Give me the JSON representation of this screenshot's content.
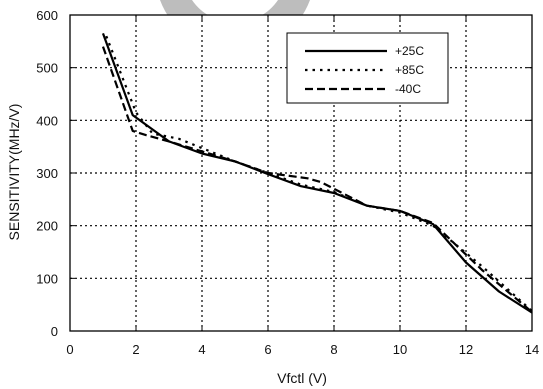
{
  "chart_data": {
    "type": "line",
    "xlabel": "Vfctl (V)",
    "ylabel": "SENSITIVITY(MHz/V)",
    "xlim": [
      0,
      14
    ],
    "ylim": [
      0,
      600
    ],
    "x_ticks": [
      0,
      2,
      4,
      6,
      8,
      10,
      12,
      14
    ],
    "y_ticks": [
      0,
      100,
      200,
      300,
      400,
      500,
      600
    ],
    "grid": true,
    "legend_position": "top-right",
    "series": [
      {
        "name": "+25C",
        "style": "solid",
        "points": [
          [
            1,
            565
          ],
          [
            1.9,
            410
          ],
          [
            3,
            360
          ],
          [
            4,
            337
          ],
          [
            5,
            322
          ],
          [
            6,
            298
          ],
          [
            7,
            275
          ],
          [
            8,
            262
          ],
          [
            9,
            238
          ],
          [
            10,
            228
          ],
          [
            11,
            203
          ],
          [
            12,
            130
          ],
          [
            13,
            75
          ],
          [
            14,
            35
          ]
        ]
      },
      {
        "name": "+85C",
        "style": "dotted",
        "points": [
          [
            1.1,
            560
          ],
          [
            2,
            415
          ],
          [
            2.5,
            375
          ],
          [
            3.3,
            365
          ],
          [
            5,
            322
          ],
          [
            6,
            300
          ],
          [
            7,
            278
          ],
          [
            8,
            264
          ],
          [
            9,
            238
          ],
          [
            10,
            225
          ],
          [
            11,
            200
          ],
          [
            12.5,
            122
          ],
          [
            14,
            38
          ]
        ]
      },
      {
        "name": "-40C",
        "style": "dashed",
        "points": [
          [
            1,
            540
          ],
          [
            1.9,
            380
          ],
          [
            2.3,
            372
          ],
          [
            3,
            360
          ],
          [
            5,
            322
          ],
          [
            6,
            300
          ],
          [
            7.2,
            290
          ],
          [
            7.6,
            283
          ],
          [
            9,
            238
          ],
          [
            10,
            228
          ],
          [
            11,
            205
          ],
          [
            12.5,
            115
          ],
          [
            14,
            36
          ]
        ]
      }
    ]
  }
}
